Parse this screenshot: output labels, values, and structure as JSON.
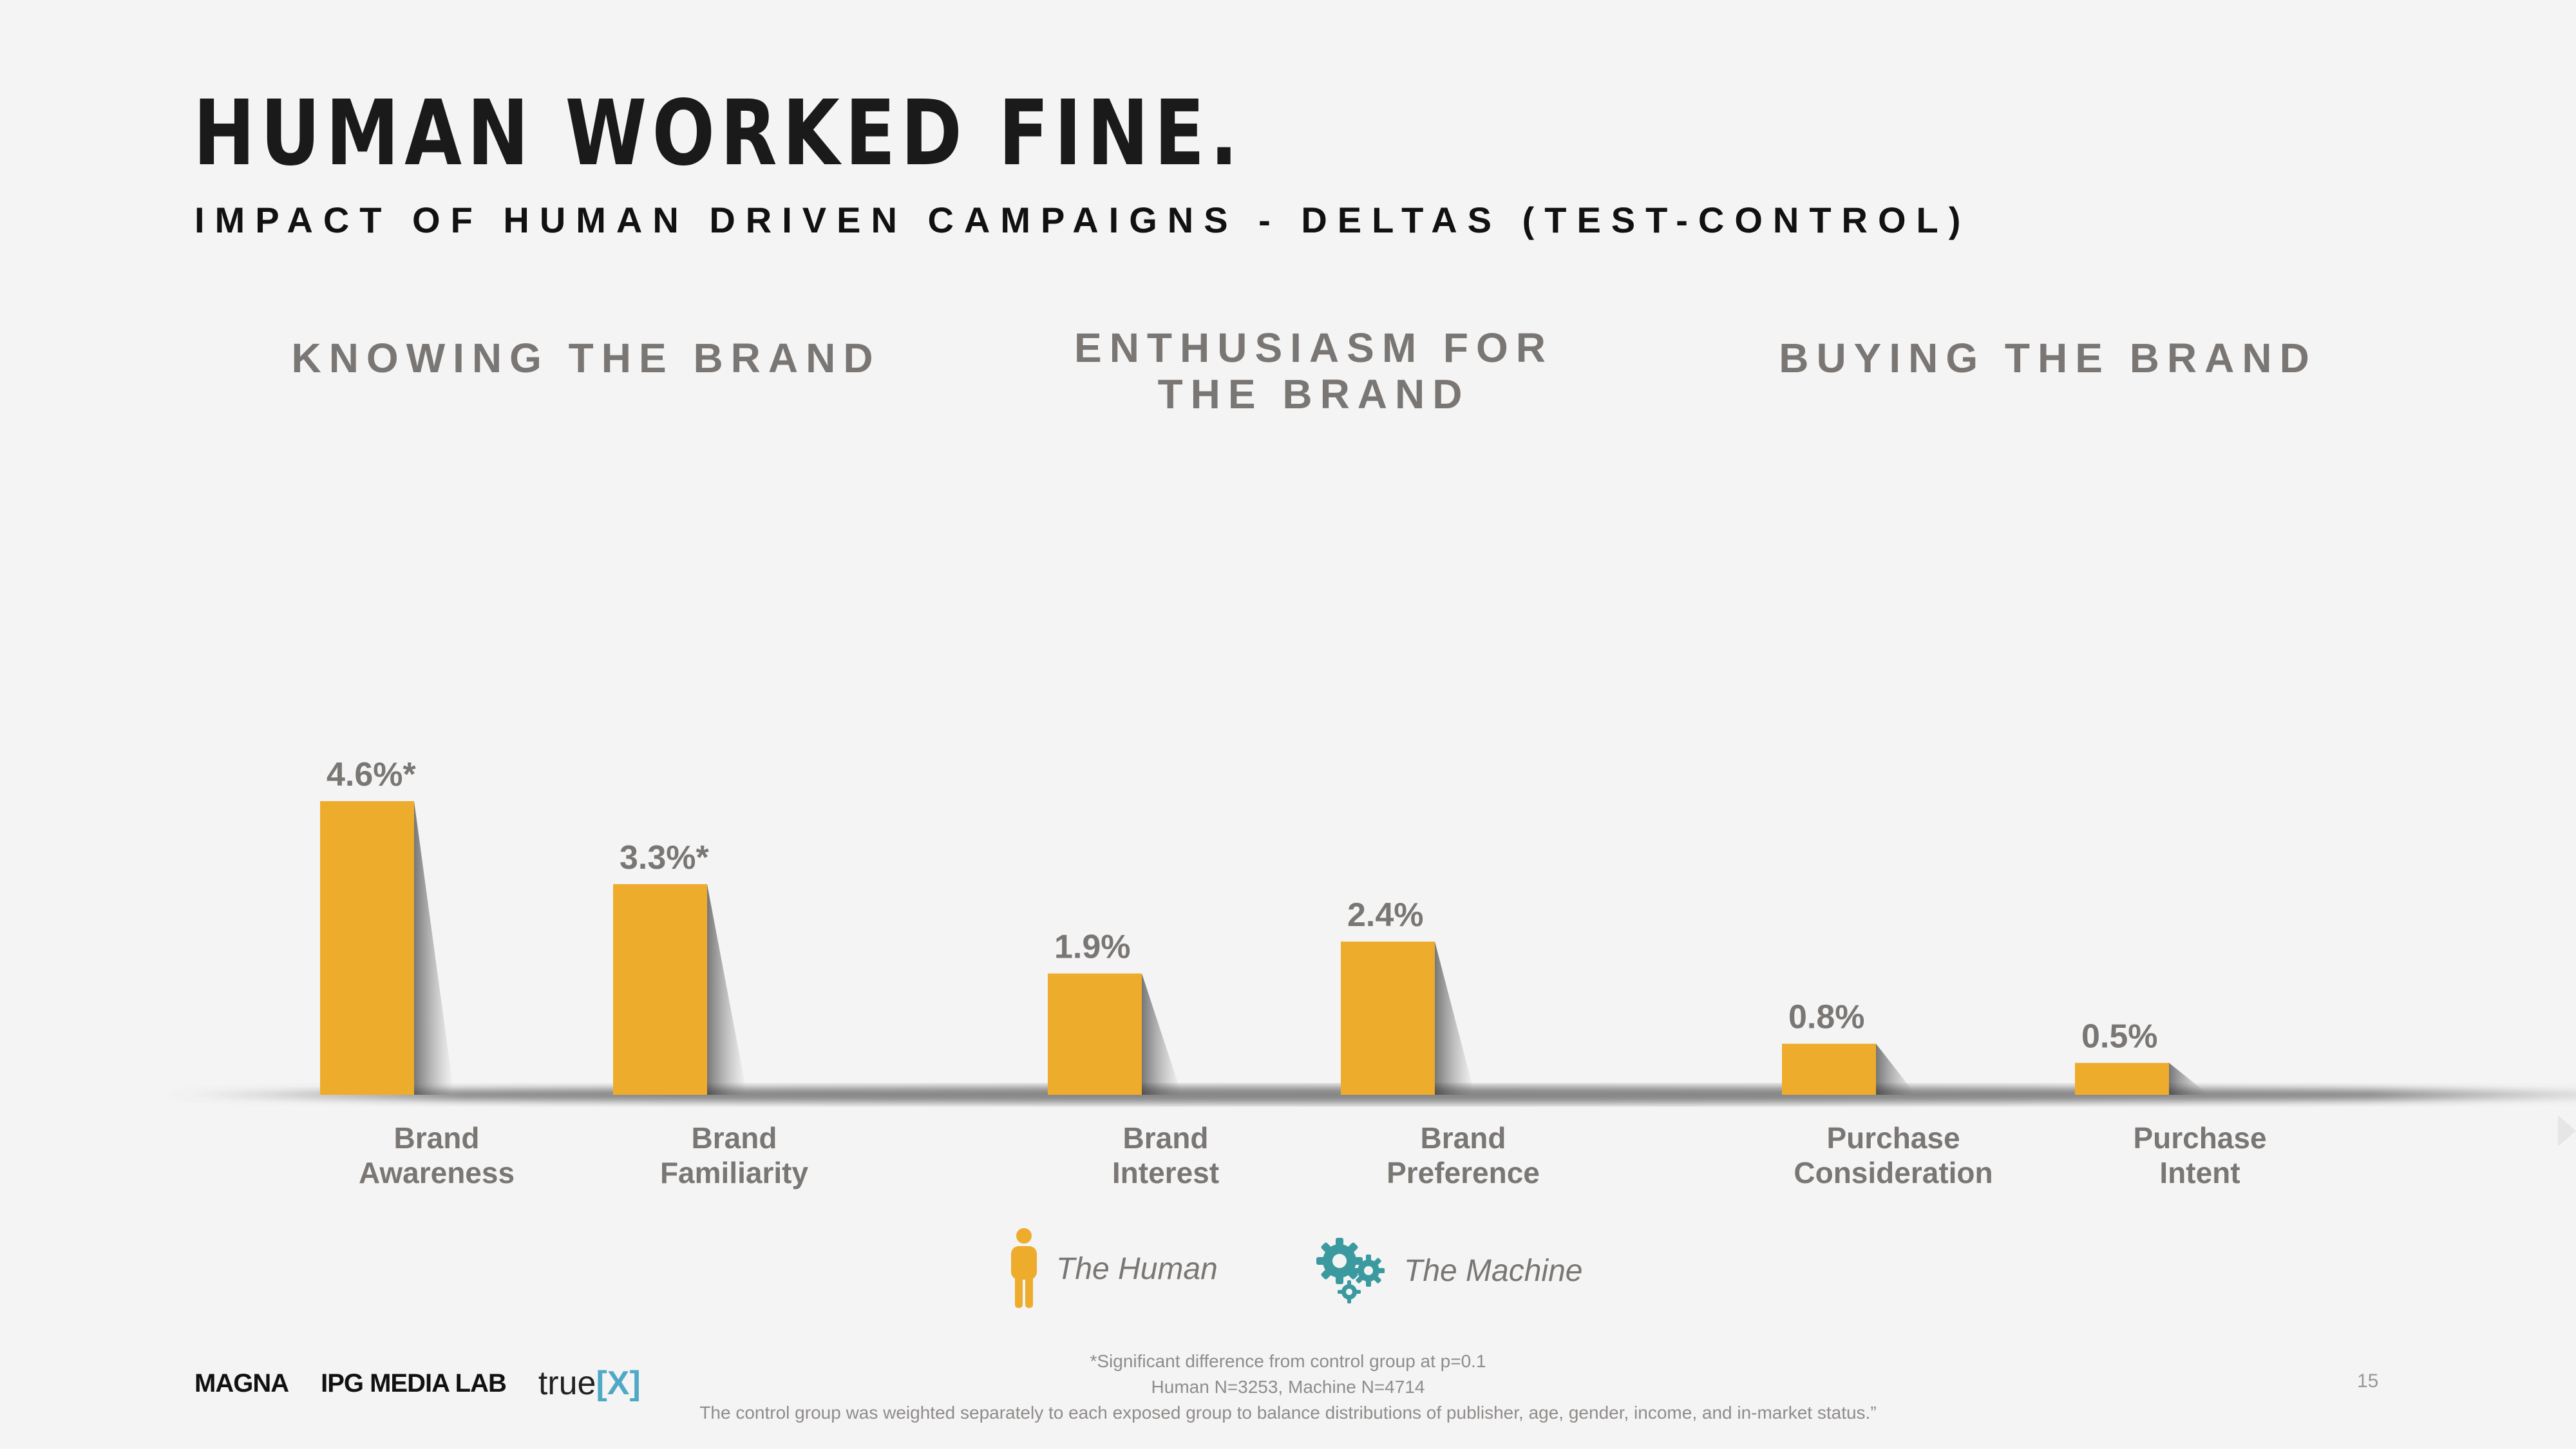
{
  "header": {
    "title": "HUMAN WORKED FINE.",
    "subtitle": "IMPACT OF HUMAN DRIVEN CAMPAIGNS - DELTAS (TEST-CONTROL)"
  },
  "groups": [
    {
      "heading_line1": "KNOWING THE BRAND",
      "heading_line2": ""
    },
    {
      "heading_line1": "ENTHUSIASM FOR",
      "heading_line2": "THE BRAND"
    },
    {
      "heading_line1": "BUYING THE BRAND",
      "heading_line2": ""
    }
  ],
  "chart_data": {
    "type": "bar",
    "title": "IMPACT OF HUMAN DRIVEN CAMPAIGNS - DELTAS (TEST-CONTROL)",
    "xlabel": "",
    "ylabel": "",
    "ylim": [
      0,
      4.6
    ],
    "unit": "%",
    "categories": [
      [
        "Brand",
        "Awareness"
      ],
      [
        "Brand",
        "Familiarity"
      ],
      [
        "Brand",
        "Interest"
      ],
      [
        "Brand",
        "Preference"
      ],
      [
        "Purchase",
        "Consideration"
      ],
      [
        "Purchase",
        "Intent"
      ]
    ],
    "series": [
      {
        "name": "The Human",
        "values": [
          4.6,
          3.3,
          1.9,
          2.4,
          0.8,
          0.5
        ],
        "labels": [
          "4.6%*",
          "3.3%*",
          "1.9%",
          "2.4%",
          "0.8%",
          "0.5%"
        ]
      }
    ],
    "colors": {
      "bar": "#eeac2d",
      "label": "#7a7674"
    }
  },
  "legend": {
    "human": {
      "label": "The Human",
      "icon": "person-icon",
      "color": "#eeac2d"
    },
    "machine": {
      "label": "The Machine",
      "icon": "gears-icon",
      "color": "#3a9aa0"
    }
  },
  "footnotes": {
    "line1": "*Significant difference from control group at p=0.1",
    "line2": "Human N=3253, Machine N=4714",
    "line3": "The control group was weighted separately to each exposed group to balance distributions of publisher, age, gender, income, and in-market status.”"
  },
  "logos": {
    "magna": "MAGNA",
    "ipg": "IPG MEDIA LAB",
    "truex_word": "true",
    "truex_mark": "[X]"
  },
  "page_number": "15"
}
